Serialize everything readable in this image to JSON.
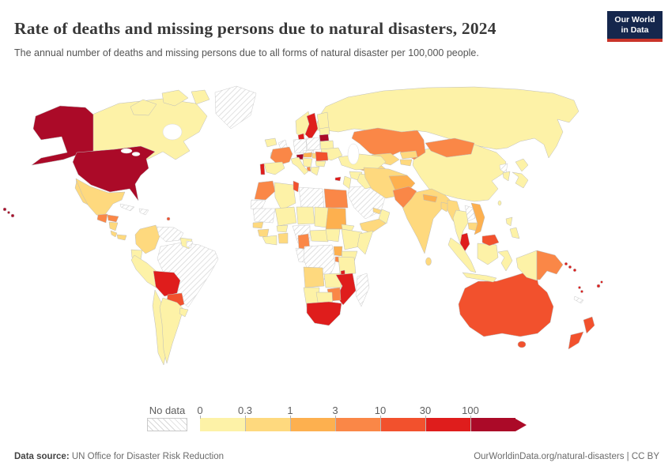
{
  "header": {
    "title": "Rate of deaths and missing persons due to natural disasters, 2024",
    "subtitle": "The annual number of deaths and missing persons due to all forms of natural disaster per 100,000 people.",
    "logo_line1": "Our World",
    "logo_line2": "in Data"
  },
  "legend": {
    "no_data_label": "No data",
    "ticks": [
      "0",
      "0.3",
      "1",
      "3",
      "10",
      "30",
      "100"
    ]
  },
  "footer": {
    "source_label": "Data source:",
    "source_text": " UN Office for Disaster Risk Reduction",
    "credit_text": "OurWorldinData.org/natural-disasters | CC BY"
  },
  "chart_data": {
    "type": "choropleth",
    "title": "Rate of deaths and missing persons due to natural disasters, 2024",
    "unit": "annual deaths and missing persons due to natural disasters per 100,000 people",
    "year": 2024,
    "legend_ticks": [
      "0",
      "0.3",
      "1",
      "3",
      "10",
      "30",
      "100"
    ],
    "bins": [
      {
        "range": "0-0.3",
        "color": "#fdf2a7"
      },
      {
        "range": "0.3-1",
        "color": "#fed97e"
      },
      {
        "range": "1-3",
        "color": "#fdb04f"
      },
      {
        "range": "3-10",
        "color": "#fa8747"
      },
      {
        "range": "10-30",
        "color": "#f2512d"
      },
      {
        "range": "30-100",
        "color": "#df1d1c"
      },
      {
        "range": "100+",
        "color": "#ab0a28"
      }
    ],
    "no_data": {
      "label": "No data",
      "pattern": "hatched"
    },
    "countries": {
      "russia": 0,
      "canada": 0,
      "greenland": "no-data",
      "united-states": 6,
      "mexico": 1,
      "guatemala": 3,
      "honduras": 3,
      "nicaragua": 1,
      "costa-rica": 1,
      "panama": 1,
      "cuba": "no-data",
      "hispaniola": "no-data",
      "lesser-antilles": 4,
      "colombia": 1,
      "venezuela": "no-data",
      "guyana": 0,
      "suriname": "no-data",
      "brazil": "no-data",
      "ecuador": 0,
      "peru": 0,
      "bolivia": 5,
      "paraguay": 4,
      "chile": 0,
      "argentina": 0,
      "uruguay": 0,
      "iceland": 0,
      "united-kingdom": "no-data",
      "ireland": 0,
      "norway": 0,
      "sweden": 5,
      "finland": 0,
      "denmark": 5,
      "estonia-latvia": 0,
      "lithuania": 6,
      "belarus": 0,
      "poland": "no-data",
      "germany": "no-data",
      "czechia": "no-data",
      "france": 3,
      "switzerland": 6,
      "austria": 2,
      "hungary": 1,
      "romania": 4,
      "bulgaria": 0,
      "balkans": 0,
      "albania": 3,
      "greece": 0,
      "italy": 0,
      "spain": 0,
      "portugal": 5,
      "ukraine": 0,
      "kazakhstan": 3,
      "uzbekistan": 1,
      "turkmenistan": 1,
      "kyrgyzstan": 1,
      "tajikistan": 1,
      "georgia": 0,
      "armenia": 5,
      "azerbaijan": 2,
      "turkey": 0,
      "cyprus": 5,
      "syria": 0,
      "iraq": 0,
      "jordan-israel": 0,
      "saudi-arabia": "no-data",
      "yemen": 1,
      "oman": 0,
      "united-arab-emirates": 1,
      "iran": 1,
      "afghanistan": 2,
      "pakistan": 3,
      "india": 1,
      "nepal": 2,
      "bangladesh": 1,
      "sri-lanka": 1,
      "myanmar": 1,
      "thailand": 0,
      "laos": "no-data",
      "cambodia": 1,
      "vietnam": 2,
      "china": 0,
      "mongolia": 3,
      "north-korea": "no-data",
      "south-korea": 0,
      "japan": 0,
      "taiwan": 0,
      "philippines": 0,
      "malaysia": 5,
      "malaysia-borneo": 4,
      "indonesia": 0,
      "papua-new-guinea": 3,
      "solomon-islands": 5,
      "vanuatu": 5,
      "fiji": 5,
      "new-caledonia": "no-data",
      "australia": 4,
      "new-zealand": 4,
      "morocco": 3,
      "western-sahara": "no-data",
      "algeria": 0,
      "tunisia": 4,
      "libya": "no-data",
      "egypt": 3,
      "mauritania": "no-data",
      "mali": 0,
      "niger": 0,
      "chad": 0,
      "sudan": 2,
      "senegal": 1,
      "guinea": 1,
      "cote-divoire": 0,
      "burkina-faso": 0,
      "ghana": 1,
      "nigeria": "no-data",
      "cameroon": 3,
      "central-african-republic": 0,
      "gabon-congo": "no-data",
      "south-sudan": 0,
      "eritrea": 0,
      "ethiopia": 0,
      "somalia": 0,
      "kenya": 0,
      "uganda": 2,
      "rwanda-burundi": 3,
      "democratic-republic-of-congo": "no-data",
      "tanzania": 0,
      "angola": 1,
      "zambia": 0,
      "malawi": 5,
      "mozambique": 5,
      "zimbabwe": 3,
      "namibia": 0,
      "botswana": 0,
      "south-africa": 5,
      "madagascar": "no-data"
    }
  }
}
